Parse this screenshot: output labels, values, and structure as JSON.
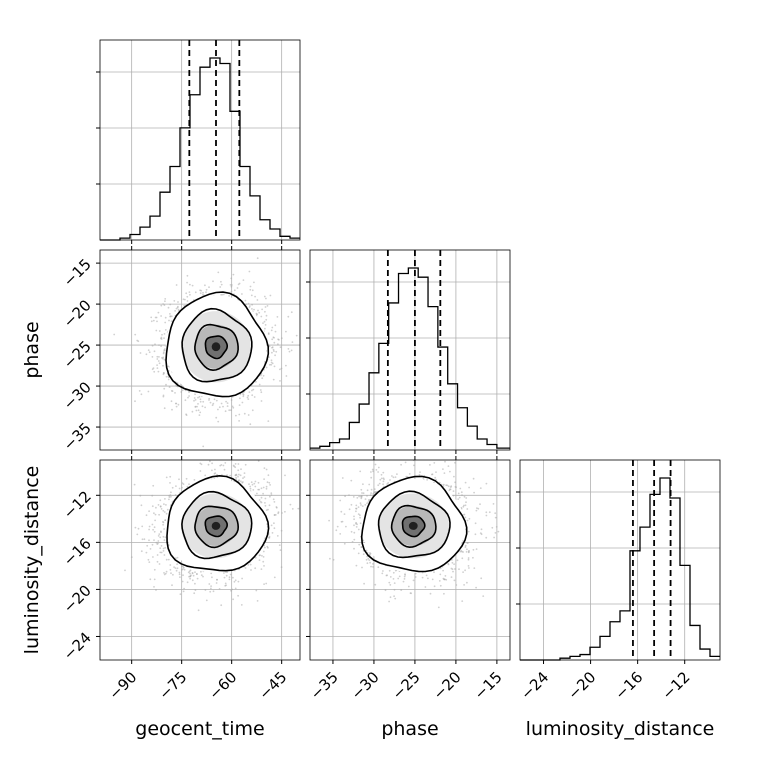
{
  "chart_data": {
    "type": "corner",
    "parameters": [
      "geocent_time",
      "phase",
      "luminosity_distance"
    ],
    "axis_labels": [
      "geocent_time",
      "phase",
      "luminosity_distance"
    ],
    "ranges": {
      "geocent_time": [
        -99.5,
        -39.5
      ],
      "phase": [
        -37.8,
        -13.4
      ],
      "luminosity_distance": [
        -26.0,
        -9.0
      ]
    },
    "ticks": {
      "geocent_time": [
        -90,
        -75,
        -60,
        -45
      ],
      "phase": [
        -35,
        -30,
        -25,
        -20,
        -15
      ],
      "luminosity_distance": [
        -24,
        -20,
        -16,
        -12
      ]
    },
    "ticks_bottom_luminosity_distance": [
      -24,
      -20,
      -16,
      -12
    ],
    "ticks_left_luminosity_distance": [
      -24,
      -20,
      -16,
      -12
    ],
    "quantiles": {
      "geocent_time": [
        -72.7,
        -64.7,
        -57.7
      ],
      "phase": [
        -28.3,
        -25.0,
        -21.9
      ],
      "luminosity_distance": [
        -16.4,
        -14.6,
        -13.2
      ]
    },
    "histograms": {
      "geocent_time": {
        "bin_edges": [
          -99.5,
          -96.5,
          -93.5,
          -90.5,
          -87.5,
          -84.5,
          -81.5,
          -78.5,
          -75.5,
          -72.5,
          -69.5,
          -66.5,
          -63.5,
          -60.5,
          -57.5,
          -54.5,
          -51.5,
          -48.5,
          -45.5,
          -42.5,
          -39.5
        ],
        "counts": [
          0.0,
          0.0,
          0.01,
          0.03,
          0.07,
          0.13,
          0.26,
          0.4,
          0.61,
          0.79,
          0.94,
          0.99,
          0.96,
          0.7,
          0.4,
          0.24,
          0.11,
          0.06,
          0.02,
          0.01
        ]
      },
      "phase": {
        "bin_edges": [
          -37.8,
          -36.6,
          -35.4,
          -34.2,
          -33.0,
          -31.8,
          -30.6,
          -29.4,
          -28.2,
          -27.0,
          -25.8,
          -24.6,
          -23.4,
          -22.2,
          -21.0,
          -19.8,
          -18.6,
          -17.4,
          -16.2,
          -15.0,
          -13.4
        ],
        "counts": [
          0.01,
          0.02,
          0.04,
          0.06,
          0.15,
          0.25,
          0.42,
          0.58,
          0.8,
          0.96,
          0.99,
          0.94,
          0.78,
          0.56,
          0.36,
          0.23,
          0.13,
          0.06,
          0.03,
          0.01
        ]
      },
      "luminosity_distance": {
        "bin_edges": [
          -26.0,
          -25.15,
          -24.3,
          -23.45,
          -22.6,
          -21.75,
          -20.9,
          -20.05,
          -19.2,
          -18.35,
          -17.5,
          -16.65,
          -15.8,
          -14.95,
          -14.1,
          -13.25,
          -12.4,
          -11.55,
          -10.7,
          -9.85,
          -9.0
        ],
        "counts": [
          0.0,
          0.0,
          0.0,
          0.0,
          0.01,
          0.02,
          0.03,
          0.07,
          0.13,
          0.21,
          0.27,
          0.6,
          0.73,
          0.91,
          1.0,
          0.89,
          0.52,
          0.19,
          0.06,
          0.02
        ]
      }
    },
    "joint": [
      {
        "x": "geocent_time",
        "y": "phase",
        "center": [
          -64.7,
          -25.2
        ],
        "sigma": [
          7.2,
          3.0
        ],
        "rho": 0.0
      },
      {
        "x": "geocent_time",
        "y": "luminosity_distance",
        "center": [
          -64.7,
          -14.6
        ],
        "sigma": [
          7.2,
          1.9
        ],
        "rho": 0.12
      },
      {
        "x": "phase",
        "y": "luminosity_distance",
        "center": [
          -25.2,
          -14.6
        ],
        "sigma": [
          3.0,
          1.9
        ],
        "rho": -0.05
      }
    ],
    "grid": true,
    "colors": {
      "line": "#000000",
      "scatter": "#aaaaaa",
      "grid": "#b0b0b0"
    }
  }
}
